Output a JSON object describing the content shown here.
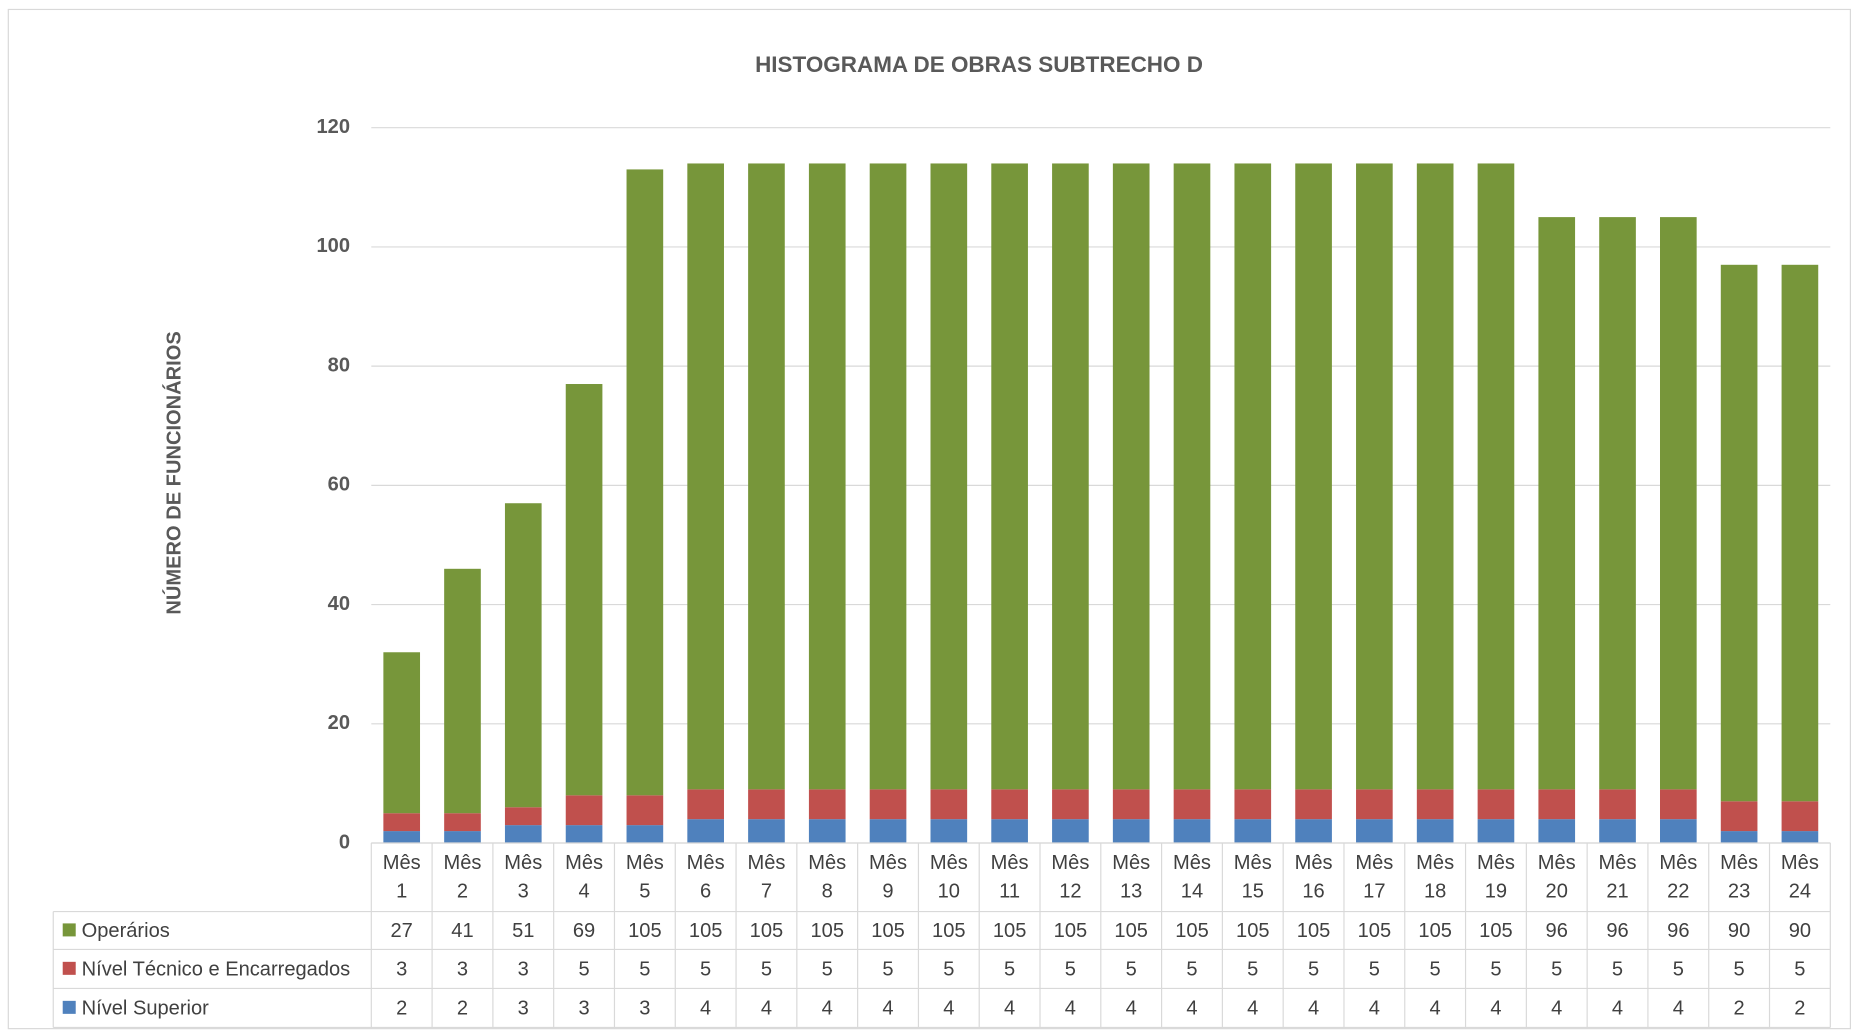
{
  "chart_data": {
    "type": "stacked_bar",
    "title": "HISTOGRAMA DE OBRAS  SUBTRECHO D",
    "y_label": "NÚMERO DE FUNCIONÁRIOS",
    "categories": [
      "Mês 1",
      "Mês 2",
      "Mês 3",
      "Mês 4",
      "Mês 5",
      "Mês 6",
      "Mês 7",
      "Mês 8",
      "Mês 9",
      "Mês 10",
      "Mês 11",
      "Mês 12",
      "Mês 13",
      "Mês 14",
      "Mês 15",
      "Mês 16",
      "Mês 17",
      "Mês 18",
      "Mês 19",
      "Mês 20",
      "Mês 21",
      "Mês 22",
      "Mês 23",
      "Mês 24"
    ],
    "series": [
      {
        "name": "Operários",
        "color": "#77963a",
        "values": [
          27,
          41,
          51,
          69,
          105,
          105,
          105,
          105,
          105,
          105,
          105,
          105,
          105,
          105,
          105,
          105,
          105,
          105,
          105,
          96,
          96,
          96,
          90,
          90
        ]
      },
      {
        "name": "Nível Técnico e Encarregados",
        "color": "#c0504d",
        "values": [
          3,
          3,
          3,
          5,
          5,
          5,
          5,
          5,
          5,
          5,
          5,
          5,
          5,
          5,
          5,
          5,
          5,
          5,
          5,
          5,
          5,
          5,
          5,
          5
        ]
      },
      {
        "name": "Nível Superior",
        "color": "#4f81bd",
        "values": [
          2,
          2,
          3,
          3,
          3,
          4,
          4,
          4,
          4,
          4,
          4,
          4,
          4,
          4,
          4,
          4,
          4,
          4,
          4,
          4,
          4,
          4,
          2,
          2
        ]
      }
    ],
    "ylim": [
      0,
      120
    ],
    "yticks": [
      0,
      20,
      40,
      60,
      80,
      100,
      120
    ],
    "grid": true
  }
}
